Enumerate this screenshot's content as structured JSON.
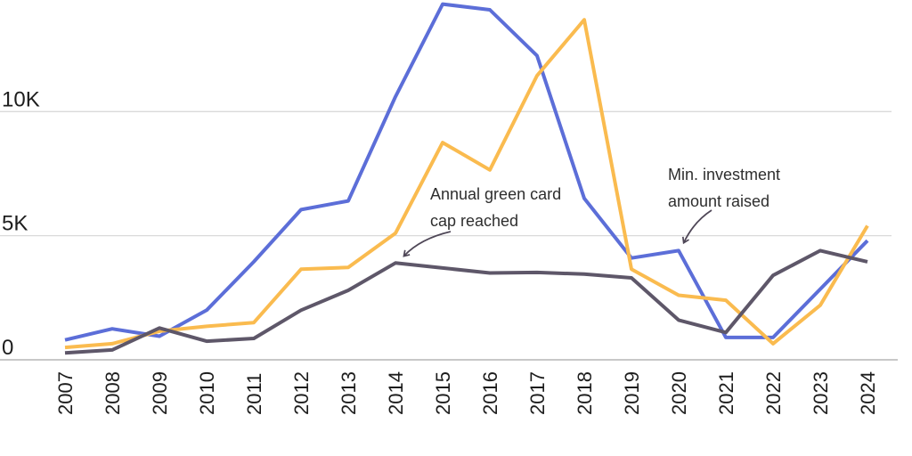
{
  "chart_data": {
    "type": "line",
    "title": "",
    "xlabel": "",
    "ylabel": "",
    "x": [
      2007,
      2008,
      2009,
      2010,
      2011,
      2012,
      2013,
      2014,
      2015,
      2016,
      2017,
      2018,
      2019,
      2020,
      2021,
      2022,
      2023,
      2024
    ],
    "series": [
      {
        "name": "blue-line",
        "color": "#5C6ED8",
        "values": [
          800,
          1250,
          950,
          2000,
          3950,
          6050,
          6400,
          10600,
          14330,
          14100,
          12250,
          6500,
          4100,
          4400,
          900,
          900,
          2850,
          4800
        ]
      },
      {
        "name": "orange-line",
        "color": "#FABB4F",
        "values": [
          500,
          650,
          1150,
          1350,
          1500,
          3650,
          3720,
          5100,
          8750,
          7650,
          11450,
          13700,
          3650,
          2600,
          2400,
          650,
          2200,
          5400
        ]
      },
      {
        "name": "dark-purple-line",
        "color": "#5E5769",
        "values": [
          280,
          400,
          1280,
          750,
          860,
          2000,
          2800,
          3900,
          3700,
          3500,
          3520,
          3450,
          3300,
          1600,
          1100,
          3400,
          4400,
          3950
        ]
      }
    ],
    "ylim": [
      0,
      14500
    ],
    "yticks": [
      {
        "value": 0,
        "label": "0"
      },
      {
        "value": 5000,
        "label": "5K"
      },
      {
        "value": 10000,
        "label": "10K"
      }
    ],
    "grid": "horizontal-only",
    "legend": "none",
    "annotations": [
      {
        "lines": [
          "Annual green card",
          "cap reached"
        ],
        "text_x": 483,
        "text_y": 224,
        "line_height": 30,
        "arrow": {
          "from": [
            506,
            260
          ],
          "ctrl": [
            472,
            268
          ],
          "to": [
            454,
            287
          ]
        }
      },
      {
        "lines": [
          "Min. investment",
          "amount raised"
        ],
        "text_x": 750,
        "text_y": 202,
        "line_height": 30,
        "arrow": {
          "from": [
            799,
            236
          ],
          "ctrl": [
            779,
            249
          ],
          "to": [
            768,
            272
          ]
        }
      }
    ]
  },
  "style": {
    "tick_text_color": "#1D1D1D",
    "annotation_text_color": "#2E2E2E",
    "grid_color": "#DADADA",
    "axis_color": "#C8C8C8",
    "arrow_color": "#4F4757",
    "background": "#FFFFFF"
  }
}
